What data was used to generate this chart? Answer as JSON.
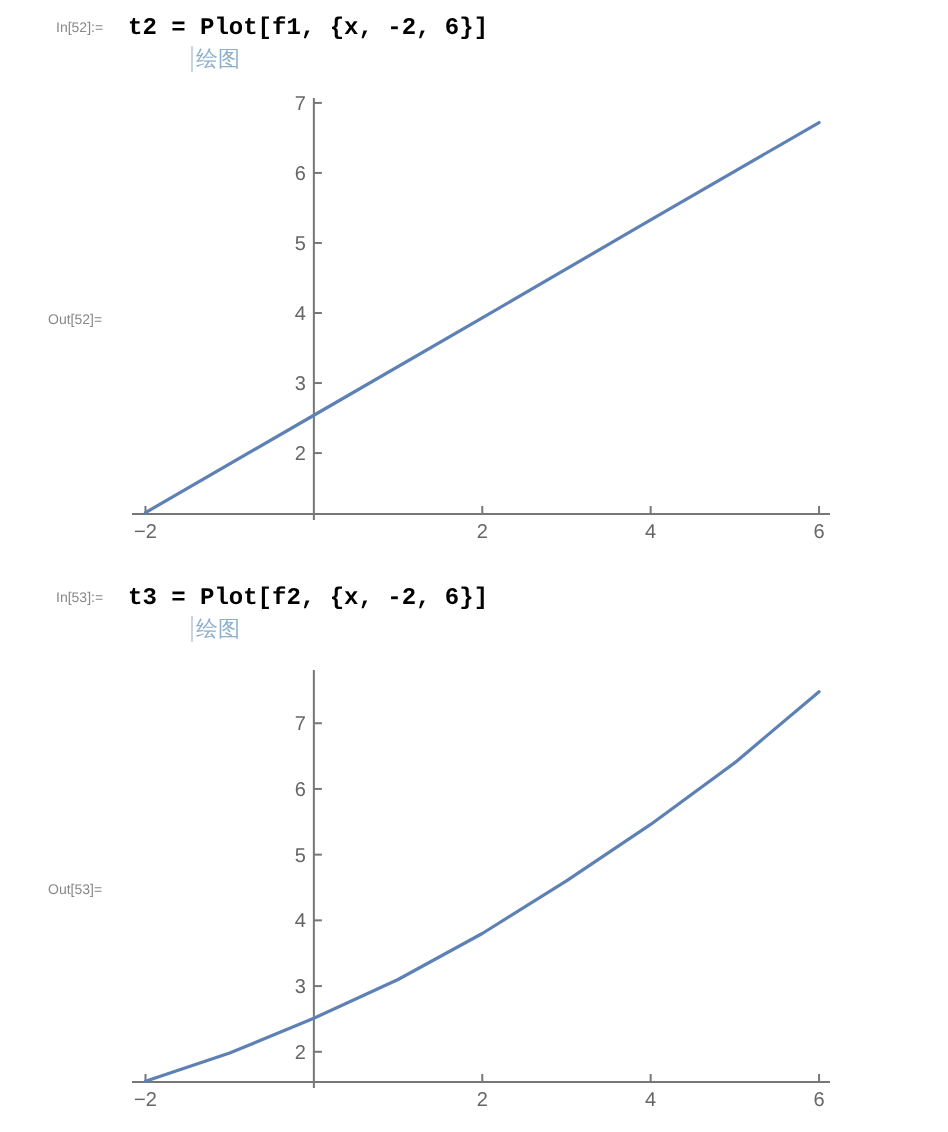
{
  "chart_data": [
    {
      "type": "line",
      "title": "t2 = Plot[f1, {x, -2, 6}]",
      "subtitle": "绘图",
      "annotations": [
        "In[52]:=",
        "Out[52]="
      ],
      "xlim": [
        -2.16,
        6.13
      ],
      "ylim": [
        1.13,
        7.07
      ],
      "xticks": [
        -2,
        2,
        4,
        6
      ],
      "yticks": [
        2,
        3,
        4,
        5,
        6,
        7
      ],
      "grid": false,
      "marker": "none",
      "line_style": "solid",
      "series": [
        {
          "color": "#5e81b5",
          "x": [
            -2,
            0,
            2,
            4,
            6
          ],
          "values": [
            1.15,
            2.54,
            3.93,
            5.33,
            6.72
          ]
        }
      ]
    },
    {
      "type": "line",
      "title": "t3 = Plot[f2, {x, -2, 6}]",
      "subtitle": "绘图",
      "annotations": [
        "In[53]:=",
        "Out[53]="
      ],
      "xlim": [
        -2.16,
        6.13
      ],
      "ylim": [
        1.54,
        7.81
      ],
      "xticks": [
        -2,
        2,
        4,
        6
      ],
      "yticks": [
        2,
        3,
        4,
        5,
        6,
        7
      ],
      "grid": false,
      "marker": "none",
      "line_style": "solid",
      "series": [
        {
          "color": "#5e81b5",
          "x": [
            -2,
            -1,
            0,
            1,
            2,
            3,
            4,
            5,
            6
          ],
          "values": [
            1.55,
            1.98,
            2.51,
            3.1,
            3.8,
            4.6,
            5.46,
            6.4,
            7.48
          ]
        }
      ]
    }
  ]
}
